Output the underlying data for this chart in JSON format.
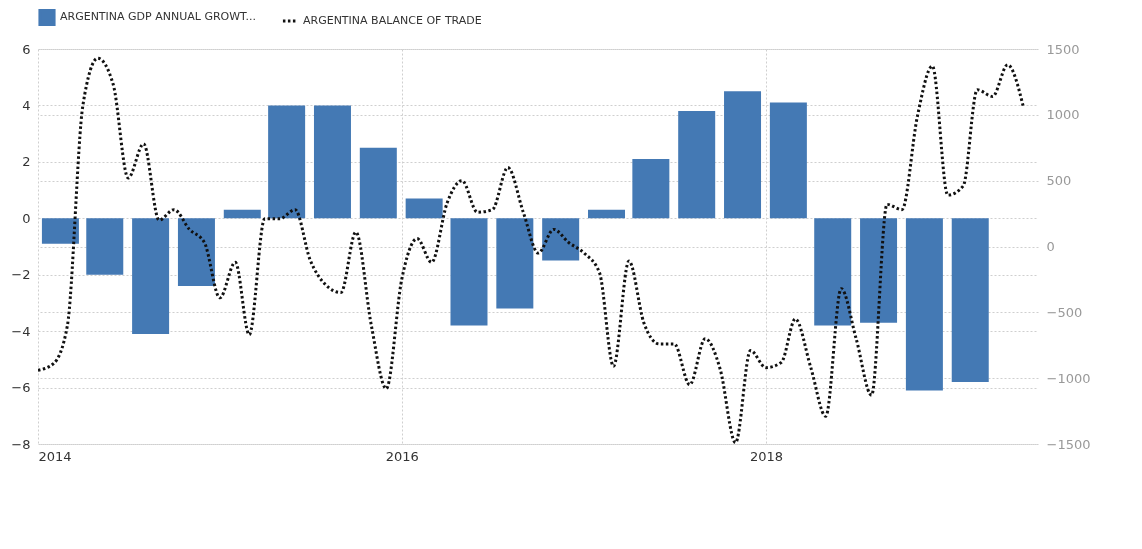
{
  "chart_data": {
    "type": "bar",
    "legend": "top left",
    "grid": true,
    "xlim": [
      "2014-01-01",
      "2019-07-01"
    ],
    "xticks": [
      "2014",
      "2016",
      "2018"
    ],
    "ylim": [
      -8,
      6
    ],
    "yticks": [
      -8,
      -6,
      -4,
      -2,
      0,
      2,
      4,
      6
    ],
    "y2lim": [
      -1500,
      1500
    ],
    "y2ticks": [
      -1500,
      -1000,
      -500,
      0,
      500,
      1000,
      1500
    ],
    "series": [
      {
        "name": "ARGENTINA GDP ANNUAL GROWT...",
        "color": "#4479b4",
        "x": [
          "2014-02-15",
          "2014-05-15",
          "2014-08-15",
          "2014-11-15",
          "2015-02-15",
          "2015-05-15",
          "2015-08-15",
          "2015-11-15",
          "2016-02-15",
          "2016-05-15",
          "2016-08-15",
          "2016-11-15",
          "2017-02-15",
          "2017-05-15",
          "2017-08-15",
          "2017-11-15",
          "2018-02-15",
          "2018-05-15",
          "2018-08-15",
          "2018-11-15",
          "2019-02-15"
        ],
        "values": [
          -0.9,
          -2.0,
          -4.1,
          -2.4,
          0.3,
          4.0,
          4.0,
          2.5,
          0.7,
          -3.8,
          -3.2,
          -1.5,
          0.3,
          2.1,
          3.8,
          4.5,
          4.1,
          -3.8,
          -3.7,
          -6.1,
          -5.8
        ]
      },
      {
        "name": "ARGENTINA BALANCE OF TRADE",
        "type": "line",
        "axis": "y2",
        "color": "#111111",
        "line_style": "dotted",
        "x": [
          "2014-01",
          "2014-02",
          "2014-03",
          "2014-04",
          "2014-05",
          "2014-06",
          "2014-07",
          "2014-08",
          "2014-09",
          "2014-10",
          "2014-11",
          "2014-12",
          "2015-01",
          "2015-02",
          "2015-03",
          "2015-04",
          "2015-05",
          "2015-06",
          "2015-07",
          "2015-08",
          "2015-09",
          "2015-10",
          "2015-11",
          "2015-12",
          "2016-01",
          "2016-02",
          "2016-03",
          "2016-04",
          "2016-05",
          "2016-06",
          "2016-07",
          "2016-08",
          "2016-09",
          "2016-10",
          "2016-11",
          "2016-12",
          "2017-01",
          "2017-02",
          "2017-03",
          "2017-04",
          "2017-05",
          "2017-06",
          "2017-07",
          "2017-08",
          "2017-09",
          "2017-10",
          "2017-11",
          "2017-12",
          "2018-01",
          "2018-02",
          "2018-03",
          "2018-04",
          "2018-05",
          "2018-06",
          "2018-07",
          "2018-08",
          "2018-09",
          "2018-10",
          "2018-11",
          "2018-12",
          "2019-01",
          "2019-02",
          "2019-03",
          "2019-04",
          "2019-05",
          "2019-06"
        ],
        "values": [
          -940,
          -890,
          -600,
          1070,
          1430,
          1230,
          520,
          780,
          200,
          280,
          130,
          30,
          -390,
          -120,
          -670,
          210,
          210,
          280,
          -100,
          -290,
          -350,
          110,
          -600,
          -1080,
          -250,
          60,
          -120,
          330,
          500,
          260,
          280,
          600,
          260,
          -50,
          130,
          30,
          -50,
          -200,
          -910,
          -110,
          -580,
          -740,
          -740,
          -1050,
          -700,
          -930,
          -1490,
          -790,
          -920,
          -880,
          -550,
          -920,
          -1290,
          -320,
          -700,
          -1130,
          320,
          280,
          990,
          1370,
          390,
          460,
          1190,
          1140,
          1380,
          1070
        ]
      }
    ]
  }
}
